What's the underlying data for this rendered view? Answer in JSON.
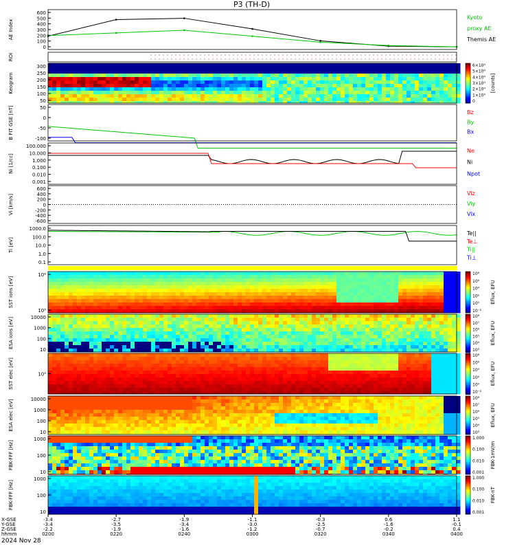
{
  "title": "P3 (TH-D)",
  "date": "2024 Nov 28",
  "time_labels": [
    "0200",
    "0220",
    "0240",
    "0300",
    "0320",
    "0340",
    "0400"
  ],
  "orbit_rows": [
    {
      "label": "X-GSE",
      "values": [
        "-3.4",
        "-2.7",
        "-1.9",
        "-1.1",
        "-0.3",
        "0.6",
        "1.1"
      ]
    },
    {
      "label": "Y-GSE",
      "values": [
        "-3.4",
        "-3.5",
        "-3.4",
        "-3.0",
        "-2.5",
        "-1.6",
        "-0.1"
      ]
    },
    {
      "label": "Z-GSE",
      "values": [
        "-2.2",
        "-1.9",
        "-1.6",
        "-1.2",
        "-0.7",
        "-0.2",
        "0.4"
      ]
    },
    {
      "label": "hhmm",
      "values": [
        "0200",
        "0220",
        "0240",
        "0300",
        "0320",
        "0340",
        "0400"
      ]
    }
  ],
  "panels": [
    {
      "id": "ae",
      "ylabel": "AE Index",
      "yticks": [
        "600",
        "500",
        "400",
        "300",
        "200",
        "100",
        "0"
      ],
      "right": [
        {
          "text": "Kyoto",
          "color": "#00c800"
        },
        {
          "text": "proxy AE",
          "color": "#00c800"
        },
        {
          "text": "Themis AE",
          "color": "#000000"
        }
      ]
    },
    {
      "id": "roi",
      "ylabel": "ROI",
      "yticks": [],
      "right": []
    },
    {
      "id": "keogram",
      "ylabel": "Keogram",
      "yticks": [
        "300",
        "250",
        "200",
        "150",
        "100",
        "50"
      ],
      "right": []
    },
    {
      "id": "bfit",
      "ylabel": "B FIT GSE [nT]",
      "yticks": [
        "50",
        "0",
        "-50",
        "-100"
      ],
      "right": [
        {
          "text": "Bz",
          "color": "#ff0000"
        },
        {
          "text": "By",
          "color": "#00c800"
        },
        {
          "text": "Bx",
          "color": "#0000ff"
        }
      ]
    },
    {
      "id": "ni",
      "ylabel": "Ni [1/cc]",
      "yticks": [
        "100.000",
        "10.000",
        "1.000",
        "0.100",
        "0.010",
        "0.001"
      ],
      "right": [
        {
          "text": "Ne",
          "color": "#ff0000"
        },
        {
          "text": "Ni",
          "color": "#000000"
        },
        {
          "text": "Npot",
          "color": "#0000ff"
        }
      ]
    },
    {
      "id": "vi",
      "ylabel": "Vi [km/s]",
      "yticks": [
        "600",
        "400",
        "200",
        "0",
        "-200",
        "-400",
        "-600"
      ],
      "right": [
        {
          "text": "Viz",
          "color": "#ff0000"
        },
        {
          "text": "Viy",
          "color": "#00c800"
        },
        {
          "text": "Vix",
          "color": "#0000ff"
        }
      ]
    },
    {
      "id": "ti",
      "ylabel": "Ti [eV]",
      "yticks": [
        "1000.0",
        "100.0",
        "10.0",
        "1.0",
        "0.1"
      ],
      "right": [
        {
          "text": "Te||",
          "color": "#000000"
        },
        {
          "text": "Te⊥",
          "color": "#ff0000"
        },
        {
          "text": "Ti||",
          "color": "#00c800"
        },
        {
          "text": "Ti⊥",
          "color": "#0000ff"
        }
      ]
    },
    {
      "id": "sst_i",
      "ylabel": "SST ions [eV]",
      "yticks": [
        "10⁶",
        "10⁵"
      ],
      "right": []
    },
    {
      "id": "esa_i",
      "ylabel": "ESA ions [eV]",
      "yticks": [
        "10000",
        "1000",
        "100",
        "10"
      ],
      "right": []
    },
    {
      "id": "sst_e",
      "ylabel": "SST elec [eV]",
      "yticks": [
        "10⁵"
      ],
      "right": []
    },
    {
      "id": "esa_e",
      "ylabel": "ESA elec [eV]",
      "yticks": [
        "10000",
        "1000",
        "100",
        "10"
      ],
      "right": []
    },
    {
      "id": "fbk_fff",
      "ylabel": "FBK-FFF [Hz]",
      "yticks": [
        "1000",
        "100",
        "10"
      ],
      "right": []
    },
    {
      "id": "fbk_ff1",
      "ylabel": "FBK-FFF [Hz]",
      "yticks": [
        "1000",
        "100",
        "10"
      ],
      "right": []
    }
  ],
  "colorbars": [
    {
      "id": "cb_keo",
      "ticks": [
        "6×10⁴",
        "5×10⁴",
        "4×10⁴",
        "3×10⁴",
        "2×10⁴",
        "1×10⁴",
        "0"
      ],
      "label": "[counts]"
    },
    {
      "id": "cb_sst_i",
      "ticks": [
        "10⁸",
        "10⁶",
        "10⁴",
        "10²",
        "10⁰",
        "10⁻²"
      ],
      "label": "Eflux, EFU"
    },
    {
      "id": "cb_esa_i",
      "ticks": [
        "10⁸",
        "10⁷",
        "10⁶",
        "10⁵",
        "10⁴",
        "10³"
      ],
      "label": "Eflux, EFU"
    },
    {
      "id": "cb_sst_e",
      "ticks": [
        "10⁸",
        "10⁶",
        "10⁴",
        "10²",
        "10⁰",
        "10⁻²"
      ],
      "label": "Eflux, EFU"
    },
    {
      "id": "cb_esa_e",
      "ticks": [
        "10⁸",
        "10⁷",
        "10⁶",
        "10⁵",
        "10⁴",
        "10³"
      ],
      "label": "Eflux, EFU"
    },
    {
      "id": "cb_fbk1",
      "ticks": [
        "1.000",
        "0.100",
        "0.010",
        "0.001"
      ],
      "label": "FBK-1mV/m"
    },
    {
      "id": "cb_fbk2",
      "ticks": [
        "1.000",
        "0.100",
        "0.010",
        "0.001"
      ],
      "label": "FBK-nT"
    }
  ],
  "chart_data": {
    "type": "line",
    "title": "P3 (TH-D)",
    "x": [
      "0200",
      "0220",
      "0240",
      "0300",
      "0320",
      "0340",
      "0400"
    ],
    "series": [
      {
        "name": "Themis AE",
        "values": [
          200,
          450,
          470,
          310,
          130,
          50,
          40
        ]
      },
      {
        "name": "Kyoto proxy AE",
        "values": [
          210,
          250,
          290,
          200,
          110,
          60,
          40
        ]
      }
    ],
    "ylabel": "AE Index",
    "ylim": [
      0,
      600
    ]
  },
  "colors": {
    "themis": "#000000",
    "kyoto": "#00c800",
    "red": "#ff0000",
    "blue": "#0000ff"
  }
}
